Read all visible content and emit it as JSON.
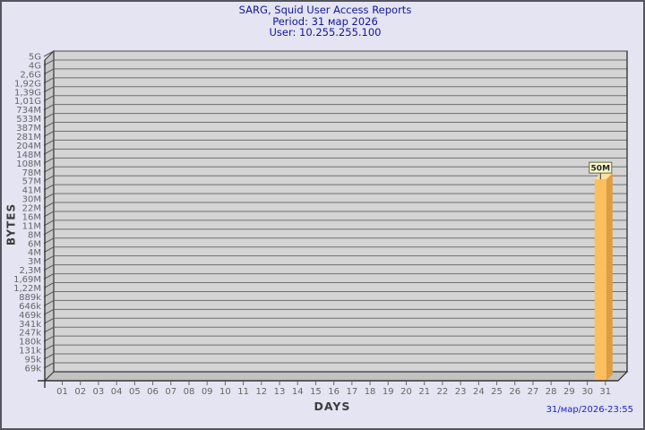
{
  "header": {
    "line1": "SARG, Squid User Access Reports",
    "line2": "Period: 31 мар 2026",
    "line3": "User: 10.255.255.100"
  },
  "footer": {
    "timestamp": "31/мар/2026-23:55"
  },
  "chart_data": {
    "type": "bar",
    "title": "SARG, Squid User Access Reports",
    "subtitle_lines": [
      "Period: 31 мар 2026",
      "User: 10.255.255.100"
    ],
    "xlabel": "DAYS",
    "ylabel": "BYTES",
    "y_scale": "log",
    "grid": true,
    "legend": null,
    "categories": [
      "01",
      "02",
      "03",
      "04",
      "05",
      "06",
      "07",
      "08",
      "09",
      "10",
      "11",
      "12",
      "13",
      "14",
      "15",
      "16",
      "17",
      "18",
      "19",
      "20",
      "21",
      "22",
      "23",
      "24",
      "25",
      "26",
      "27",
      "28",
      "29",
      "30",
      "31"
    ],
    "values": [
      0,
      0,
      0,
      0,
      0,
      0,
      0,
      0,
      0,
      0,
      0,
      0,
      0,
      0,
      0,
      0,
      0,
      0,
      0,
      0,
      0,
      0,
      0,
      0,
      0,
      0,
      0,
      0,
      0,
      0,
      50000000
    ],
    "value_unit": "bytes",
    "bar_value_labels": {
      "31": "50M"
    },
    "y_tick_labels": [
      "5G",
      "4G",
      "2,6G",
      "1,92G",
      "1,39G",
      "1,01G",
      "734M",
      "533M",
      "387M",
      "281M",
      "204M",
      "148M",
      "108M",
      "78M",
      "57M",
      "41M",
      "30M",
      "22M",
      "16M",
      "11M",
      "8M",
      "6M",
      "4M",
      "3M",
      "2,3M",
      "1,69M",
      "1,22M",
      "889k",
      "646k",
      "469k",
      "341k",
      "247k",
      "180k",
      "131k",
      "95k",
      "69k"
    ],
    "colors": {
      "title_text": "#14149b",
      "timestamp_text": "#2020cc",
      "page_bg": "#e4e4f2",
      "plot_bg": "#d4d4d4",
      "wall": "#c6c6c6",
      "floor": "#c2c2c2",
      "grid": "#6e6e6e",
      "axis_edge": "#333333",
      "tick_text": "#666666",
      "bar_front": "#fbbf5e",
      "bar_side": "#de9e40",
      "bar_top": "#ffe0a0",
      "label_box_bg": "#fbfbd2",
      "label_box_border": "#666633",
      "label_box_text": "#222222"
    }
  }
}
